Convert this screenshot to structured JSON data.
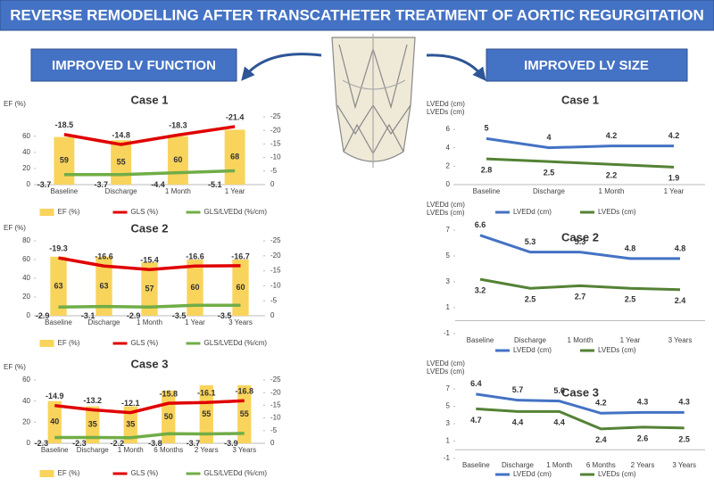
{
  "title": "REVERSE REMODELLING AFTER TRANSCATHETER TREATMENT OF AORTIC REGURGITATION",
  "left_heading": "IMPROVED LV FUNCTION",
  "right_heading": "IMPROVED LV SIZE",
  "chart_data": [
    {
      "type": "combo",
      "title": "Case 1",
      "ylabel": "EF (%)",
      "categories": [
        "Baseline",
        "Discharge",
        "1 Month",
        "1 Year"
      ],
      "ylim": [
        0,
        84
      ],
      "yticks": [
        0,
        20,
        40,
        60
      ],
      "y2lim": [
        0,
        -25
      ],
      "y2ticks": [
        0,
        -5,
        -10,
        -15,
        -20,
        -25
      ],
      "series": [
        {
          "name": "EF (%)",
          "type": "bar",
          "color": "#f9d45c",
          "values": [
            59,
            55,
            60,
            68
          ]
        },
        {
          "name": "GLS (%)",
          "type": "line",
          "axis": "y2",
          "color": "#e00000",
          "values": [
            -18.5,
            -14.8,
            -18.3,
            -21.4
          ]
        },
        {
          "name": "GLS/LVEDd (%/cm)",
          "type": "line",
          "axis": "y2",
          "color": "#70ad47",
          "values": [
            -3.7,
            -3.7,
            -4.4,
            -5.1
          ]
        }
      ]
    },
    {
      "type": "combo",
      "title": "Case 2",
      "ylabel": "EF (%)",
      "categories": [
        "Baseline",
        "Discharge",
        "1 Month",
        "1 Year",
        "3 Years"
      ],
      "ylim": [
        0,
        80
      ],
      "yticks": [
        0,
        20,
        40,
        60,
        80
      ],
      "y2lim": [
        0,
        -25
      ],
      "y2ticks": [
        0,
        -5,
        -10,
        -15,
        -20,
        -25
      ],
      "series": [
        {
          "name": "EF (%)",
          "type": "bar",
          "color": "#f9d45c",
          "values": [
            63,
            63,
            57,
            60,
            60
          ]
        },
        {
          "name": "GLS (%)",
          "type": "line",
          "axis": "y2",
          "color": "#e00000",
          "values": [
            -19.3,
            -16.6,
            -15.4,
            -16.6,
            -16.7
          ]
        },
        {
          "name": "GLS/LVEDd (%/cm)",
          "type": "line",
          "axis": "y2",
          "color": "#70ad47",
          "values": [
            -2.9,
            -3.1,
            -2.9,
            -3.5,
            -3.5
          ]
        }
      ]
    },
    {
      "type": "combo",
      "title": "Case 3",
      "ylabel": "EF (%)",
      "categories": [
        "Baseline",
        "Discharge",
        "1 Month",
        "6 Months",
        "2 Years",
        "3 Years"
      ],
      "ylim": [
        0,
        60
      ],
      "yticks": [
        0,
        20,
        40,
        60
      ],
      "y2lim": [
        0,
        -25
      ],
      "y2ticks": [
        0,
        -5,
        -10,
        -15,
        -20,
        -25
      ],
      "series": [
        {
          "name": "EF (%)",
          "type": "bar",
          "color": "#f9d45c",
          "values": [
            40,
            35,
            35,
            50,
            55,
            55
          ]
        },
        {
          "name": "GLS (%)",
          "type": "line",
          "axis": "y2",
          "color": "#e00000",
          "values": [
            -14.9,
            -13.2,
            -12.1,
            -15.8,
            -16.1,
            -16.8
          ]
        },
        {
          "name": "GLS/LVEDd (%/cm)",
          "type": "line",
          "axis": "y2",
          "color": "#70ad47",
          "values": [
            -2.3,
            -2.3,
            -2.2,
            -3.8,
            -3.7,
            -3.9
          ]
        }
      ]
    },
    {
      "type": "line",
      "title": "Case 1",
      "ylabel": [
        "LVEDd (cm)",
        "LVEDs (cm)"
      ],
      "categories": [
        "Baseline",
        "Discharge",
        "1 Month",
        "1 Year"
      ],
      "ylim": [
        0,
        6
      ],
      "yticks": [
        0,
        2,
        4,
        6
      ],
      "series": [
        {
          "name": "LVEDd (cm)",
          "color": "#4472c4",
          "values": [
            5,
            4,
            4.2,
            4.2
          ]
        },
        {
          "name": "LVEDs (cm)",
          "color": "#548235",
          "values": [
            2.8,
            2.5,
            2.2,
            1.9
          ]
        }
      ]
    },
    {
      "type": "line",
      "title": "Case 2",
      "ylabel": [
        "LVEDd (cm)",
        "LVEDs (cm)"
      ],
      "categories": [
        "Baseline",
        "Discharge",
        "1 Month",
        "1 Year",
        "3 Years"
      ],
      "ylim": [
        -1,
        7
      ],
      "yticks": [
        -1,
        1,
        3,
        5,
        7
      ],
      "series": [
        {
          "name": "LVEDd (cm)",
          "color": "#4472c4",
          "values": [
            6.6,
            5.3,
            5.3,
            4.8,
            4.8
          ]
        },
        {
          "name": "LVEDs (cm)",
          "color": "#548235",
          "values": [
            3.2,
            2.5,
            2.7,
            2.5,
            2.4
          ]
        }
      ]
    },
    {
      "type": "line",
      "title": "Case 3",
      "ylabel": [
        "LVEDd (cm)",
        "LVEDs (cm)"
      ],
      "categories": [
        "Baseline",
        "Discharge",
        "1 Month",
        "6 Months",
        "2 Years",
        "3 Years"
      ],
      "ylim": [
        -1,
        7
      ],
      "yticks": [
        -1,
        1,
        3,
        5,
        7
      ],
      "series": [
        {
          "name": "LVEDd (cm)",
          "color": "#4472c4",
          "values": [
            6.4,
            5.7,
            5.6,
            4.2,
            4.3,
            4.3
          ]
        },
        {
          "name": "LVEDs (cm)",
          "color": "#548235",
          "values": [
            4.7,
            4.4,
            4.4,
            2.4,
            2.6,
            2.5
          ]
        }
      ]
    }
  ]
}
